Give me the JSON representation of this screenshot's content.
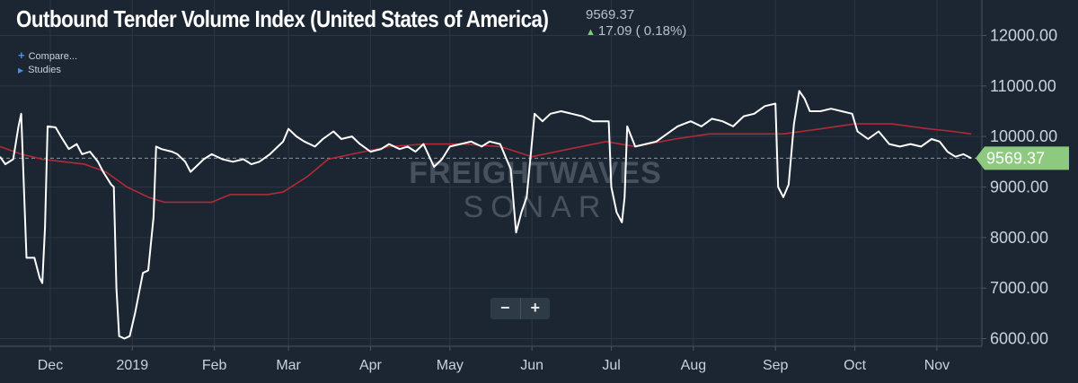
{
  "header": {
    "title": "Outbound Tender Volume Index (United States of America)",
    "last_value": "9569.37",
    "change": "17.09 ( 0.18%)"
  },
  "menu": {
    "compare": "Compare...",
    "studies": "Studies"
  },
  "zoom": {
    "minus": "−",
    "plus": "+"
  },
  "watermark": {
    "line1": "FREIGHTWAVES",
    "line2": "SONAR"
  },
  "colors": {
    "background": "#1c2633",
    "price_line": "#ffffff",
    "moving_avg": "#b32a35",
    "last_badge": "#8dc97f",
    "grid": "#2b3644"
  },
  "chart_data": {
    "type": "line",
    "title": "Outbound Tender Volume Index (United States of America)",
    "xlabel": "",
    "ylabel": "",
    "x_range": [
      "2018-11-12",
      "2019-11-18"
    ],
    "ylim": [
      5850,
      12700
    ],
    "yticks": [
      6000,
      7000,
      8000,
      9000,
      10000,
      11000,
      12000
    ],
    "ytick_labels": [
      "6000.00",
      "7000.00",
      "8000.00",
      "9000.00",
      "10000.00",
      "11000.00",
      "12000.00"
    ],
    "xticks": [
      {
        "date": "2018-12-01",
        "label": "Dec"
      },
      {
        "date": "2019-01-01",
        "label": "2019"
      },
      {
        "date": "2019-02-01",
        "label": "Feb"
      },
      {
        "date": "2019-03-01",
        "label": "Mar"
      },
      {
        "date": "2019-04-01",
        "label": "Apr"
      },
      {
        "date": "2019-05-01",
        "label": "May"
      },
      {
        "date": "2019-06-01",
        "label": "Jun"
      },
      {
        "date": "2019-07-01",
        "label": "Jul"
      },
      {
        "date": "2019-08-01",
        "label": "Aug"
      },
      {
        "date": "2019-09-01",
        "label": "Sep"
      },
      {
        "date": "2019-10-01",
        "label": "Oct"
      },
      {
        "date": "2019-11-01",
        "label": "Nov"
      }
    ],
    "last_value": 9569.37,
    "last_value_label": "9569.37",
    "grid": true,
    "series": [
      {
        "name": "",
        "color": "#ffffff",
        "points": [
          [
            "2018-11-12",
            9600
          ],
          [
            "2018-11-14",
            9450
          ],
          [
            "2018-11-17",
            9550
          ],
          [
            "2018-11-19",
            10200
          ],
          [
            "2018-11-20",
            10450
          ],
          [
            "2018-11-22",
            7600
          ],
          [
            "2018-11-25",
            7600
          ],
          [
            "2018-11-27",
            7200
          ],
          [
            "2018-11-28",
            7100
          ],
          [
            "2018-11-29",
            8200
          ],
          [
            "2018-11-30",
            10200
          ],
          [
            "2018-12-03",
            10180
          ],
          [
            "2018-12-05",
            10000
          ],
          [
            "2018-12-08",
            9750
          ],
          [
            "2018-12-11",
            9850
          ],
          [
            "2018-12-13",
            9650
          ],
          [
            "2018-12-16",
            9700
          ],
          [
            "2018-12-19",
            9500
          ],
          [
            "2018-12-21",
            9300
          ],
          [
            "2018-12-24",
            9050
          ],
          [
            "2018-12-25",
            9000
          ],
          [
            "2018-12-26",
            7000
          ],
          [
            "2018-12-27",
            6050
          ],
          [
            "2018-12-29",
            6000
          ],
          [
            "2018-12-31",
            6050
          ],
          [
            "2019-01-02",
            6500
          ],
          [
            "2019-01-05",
            7300
          ],
          [
            "2019-01-07",
            7350
          ],
          [
            "2019-01-09",
            8400
          ],
          [
            "2019-01-10",
            9800
          ],
          [
            "2019-01-12",
            9750
          ],
          [
            "2019-01-16",
            9700
          ],
          [
            "2019-01-18",
            9650
          ],
          [
            "2019-01-21",
            9500
          ],
          [
            "2019-01-23",
            9300
          ],
          [
            "2019-01-25",
            9400
          ],
          [
            "2019-01-28",
            9550
          ],
          [
            "2019-01-31",
            9650
          ],
          [
            "2019-02-04",
            9550
          ],
          [
            "2019-02-08",
            9500
          ],
          [
            "2019-02-12",
            9550
          ],
          [
            "2019-02-15",
            9450
          ],
          [
            "2019-02-18",
            9500
          ],
          [
            "2019-02-22",
            9650
          ],
          [
            "2019-02-25",
            9800
          ],
          [
            "2019-02-27",
            9900
          ],
          [
            "2019-03-01",
            10150
          ],
          [
            "2019-03-04",
            10000
          ],
          [
            "2019-03-07",
            9900
          ],
          [
            "2019-03-11",
            9800
          ],
          [
            "2019-03-14",
            9950
          ],
          [
            "2019-03-18",
            10100
          ],
          [
            "2019-03-21",
            9950
          ],
          [
            "2019-03-25",
            10000
          ],
          [
            "2019-03-28",
            9850
          ],
          [
            "2019-04-01",
            9700
          ],
          [
            "2019-04-05",
            9750
          ],
          [
            "2019-04-08",
            9850
          ],
          [
            "2019-04-12",
            9750
          ],
          [
            "2019-04-15",
            9800
          ],
          [
            "2019-04-18",
            9700
          ],
          [
            "2019-04-21",
            9850
          ],
          [
            "2019-04-25",
            9400
          ],
          [
            "2019-04-28",
            9550
          ],
          [
            "2019-05-01",
            9800
          ],
          [
            "2019-05-05",
            9850
          ],
          [
            "2019-05-09",
            9900
          ],
          [
            "2019-05-13",
            9800
          ],
          [
            "2019-05-16",
            9900
          ],
          [
            "2019-05-20",
            9850
          ],
          [
            "2019-05-22",
            9600
          ],
          [
            "2019-05-24",
            9350
          ],
          [
            "2019-05-26",
            8100
          ],
          [
            "2019-05-28",
            8500
          ],
          [
            "2019-05-30",
            8800
          ],
          [
            "2019-06-01",
            9900
          ],
          [
            "2019-06-02",
            10450
          ],
          [
            "2019-06-05",
            10300
          ],
          [
            "2019-06-08",
            10450
          ],
          [
            "2019-06-12",
            10500
          ],
          [
            "2019-06-16",
            10450
          ],
          [
            "2019-06-20",
            10400
          ],
          [
            "2019-06-24",
            10300
          ],
          [
            "2019-06-28",
            10300
          ],
          [
            "2019-06-30",
            10300
          ],
          [
            "2019-07-01",
            9000
          ],
          [
            "2019-07-03",
            8500
          ],
          [
            "2019-07-05",
            8300
          ],
          [
            "2019-07-06",
            8800
          ],
          [
            "2019-07-07",
            10200
          ],
          [
            "2019-07-10",
            9800
          ],
          [
            "2019-07-14",
            9850
          ],
          [
            "2019-07-18",
            9900
          ],
          [
            "2019-07-22",
            10050
          ],
          [
            "2019-07-26",
            10200
          ],
          [
            "2019-07-31",
            10300
          ],
          [
            "2019-08-04",
            10200
          ],
          [
            "2019-08-08",
            10350
          ],
          [
            "2019-08-12",
            10300
          ],
          [
            "2019-08-16",
            10200
          ],
          [
            "2019-08-20",
            10400
          ],
          [
            "2019-08-24",
            10450
          ],
          [
            "2019-08-28",
            10600
          ],
          [
            "2019-09-01",
            10650
          ],
          [
            "2019-09-02",
            9000
          ],
          [
            "2019-09-04",
            8800
          ],
          [
            "2019-09-06",
            9050
          ],
          [
            "2019-09-08",
            10250
          ],
          [
            "2019-09-10",
            10900
          ],
          [
            "2019-09-12",
            10750
          ],
          [
            "2019-09-14",
            10500
          ],
          [
            "2019-09-18",
            10500
          ],
          [
            "2019-09-22",
            10550
          ],
          [
            "2019-09-26",
            10500
          ],
          [
            "2019-09-30",
            10450
          ],
          [
            "2019-10-02",
            10100
          ],
          [
            "2019-10-06",
            9950
          ],
          [
            "2019-10-10",
            10100
          ],
          [
            "2019-10-14",
            9850
          ],
          [
            "2019-10-18",
            9800
          ],
          [
            "2019-10-22",
            9850
          ],
          [
            "2019-10-26",
            9800
          ],
          [
            "2019-10-30",
            9950
          ],
          [
            "2019-11-02",
            9900
          ],
          [
            "2019-11-05",
            9700
          ],
          [
            "2019-11-08",
            9600
          ],
          [
            "2019-11-11",
            9650
          ],
          [
            "2019-11-14",
            9569.37
          ]
        ]
      },
      {
        "name": "",
        "color": "#b32a35",
        "points": [
          [
            "2018-11-12",
            9800
          ],
          [
            "2018-11-20",
            9650
          ],
          [
            "2018-11-28",
            9550
          ],
          [
            "2018-12-06",
            9500
          ],
          [
            "2018-12-14",
            9450
          ],
          [
            "2018-12-22",
            9300
          ],
          [
            "2018-12-30",
            9000
          ],
          [
            "2019-01-07",
            8800
          ],
          [
            "2019-01-13",
            8700
          ],
          [
            "2019-01-31",
            8700
          ],
          [
            "2019-02-07",
            8850
          ],
          [
            "2019-02-21",
            8850
          ],
          [
            "2019-02-27",
            8900
          ],
          [
            "2019-03-08",
            9200
          ],
          [
            "2019-03-16",
            9550
          ],
          [
            "2019-03-25",
            9650
          ],
          [
            "2019-04-08",
            9800
          ],
          [
            "2019-04-22",
            9850
          ],
          [
            "2019-05-06",
            9850
          ],
          [
            "2019-05-20",
            9800
          ],
          [
            "2019-06-01",
            9600
          ],
          [
            "2019-06-15",
            9750
          ],
          [
            "2019-06-29",
            9900
          ],
          [
            "2019-07-10",
            9800
          ],
          [
            "2019-07-25",
            9950
          ],
          [
            "2019-08-07",
            10050
          ],
          [
            "2019-08-21",
            10050
          ],
          [
            "2019-09-04",
            10050
          ],
          [
            "2019-09-18",
            10150
          ],
          [
            "2019-10-01",
            10250
          ],
          [
            "2019-10-15",
            10250
          ],
          [
            "2019-10-29",
            10150
          ],
          [
            "2019-11-07",
            10100
          ],
          [
            "2019-11-14",
            10050
          ]
        ]
      }
    ]
  }
}
